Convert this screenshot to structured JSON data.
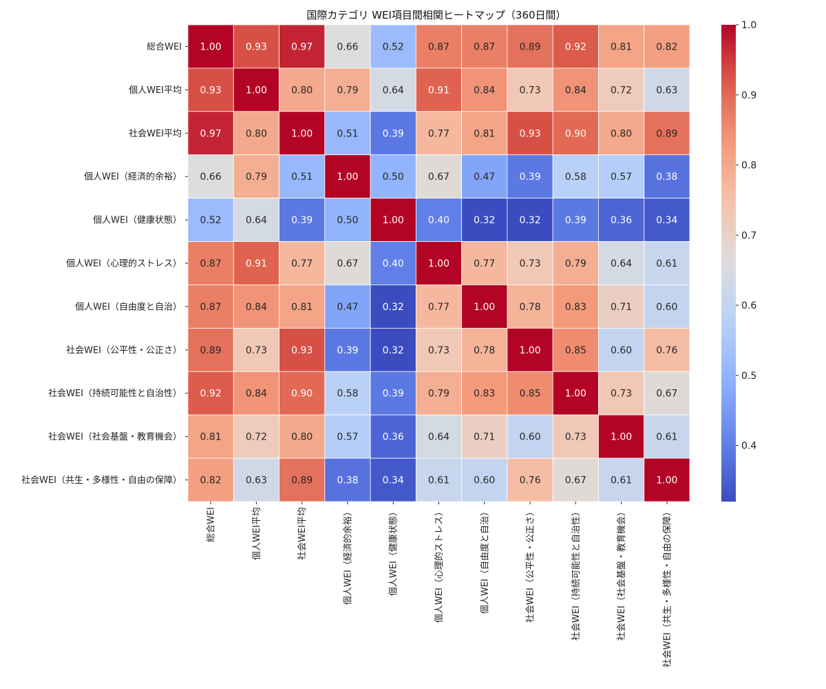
{
  "chart_data": {
    "type": "heatmap",
    "title": "国際カテゴリ WEI項目間相関ヒートマップ（360日間）",
    "labels": [
      "総合WEI",
      "個人WEI平均",
      "社会WEI平均",
      "個人WEI（経済的余裕）",
      "個人WEI（健康状態）",
      "個人WEI（心理的ストレス）",
      "個人WEI（自由度と自治）",
      "社会WEI（公平性・公正さ）",
      "社会WEI（持続可能性と自治性）",
      "社会WEI（社会基盤・教育機会）",
      "社会WEI（共生・多様性・自由の保障）"
    ],
    "matrix": [
      [
        1.0,
        0.93,
        0.97,
        0.66,
        0.52,
        0.87,
        0.87,
        0.89,
        0.92,
        0.81,
        0.82
      ],
      [
        0.93,
        1.0,
        0.8,
        0.79,
        0.64,
        0.91,
        0.84,
        0.73,
        0.84,
        0.72,
        0.63
      ],
      [
        0.97,
        0.8,
        1.0,
        0.51,
        0.39,
        0.77,
        0.81,
        0.93,
        0.9,
        0.8,
        0.89
      ],
      [
        0.66,
        0.79,
        0.51,
        1.0,
        0.5,
        0.67,
        0.47,
        0.39,
        0.58,
        0.57,
        0.38
      ],
      [
        0.52,
        0.64,
        0.39,
        0.5,
        1.0,
        0.4,
        0.32,
        0.32,
        0.39,
        0.36,
        0.34
      ],
      [
        0.87,
        0.91,
        0.77,
        0.67,
        0.4,
        1.0,
        0.77,
        0.73,
        0.79,
        0.64,
        0.61
      ],
      [
        0.87,
        0.84,
        0.81,
        0.47,
        0.32,
        0.77,
        1.0,
        0.78,
        0.83,
        0.71,
        0.6
      ],
      [
        0.89,
        0.73,
        0.93,
        0.39,
        0.32,
        0.73,
        0.78,
        1.0,
        0.85,
        0.6,
        0.76
      ],
      [
        0.92,
        0.84,
        0.9,
        0.58,
        0.39,
        0.79,
        0.83,
        0.85,
        1.0,
        0.73,
        0.67
      ],
      [
        0.81,
        0.72,
        0.8,
        0.57,
        0.36,
        0.64,
        0.71,
        0.6,
        0.73,
        1.0,
        0.61
      ],
      [
        0.82,
        0.63,
        0.89,
        0.38,
        0.34,
        0.61,
        0.6,
        0.76,
        0.67,
        0.61,
        1.0
      ]
    ],
    "colormap": "coolwarm",
    "vmin": 0.32,
    "vmax": 1.0,
    "colorbar_ticks": [
      "0.4",
      "0.5",
      "0.6",
      "0.7",
      "0.8",
      "0.9",
      "1.0"
    ],
    "colorbar_tick_values": [
      0.4,
      0.5,
      0.6,
      0.7,
      0.8,
      0.9,
      1.0
    ],
    "annotation_format": "0.00"
  }
}
